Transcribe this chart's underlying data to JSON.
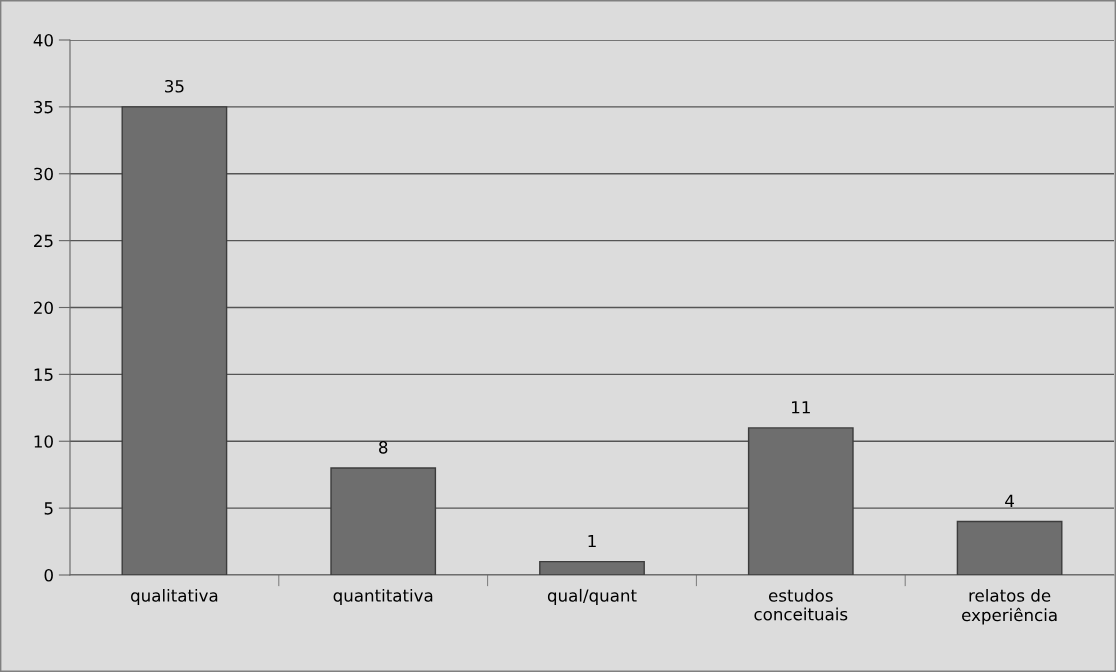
{
  "chart_data": {
    "type": "bar",
    "categories": [
      "qualitativa",
      "quantitativa",
      "qual/quant",
      "estudos\nconceituais",
      "relatos de\nexperiência"
    ],
    "values": [
      35,
      8,
      1,
      11,
      4
    ],
    "color": "#6e6e6e",
    "ylim": [
      0,
      40
    ],
    "yticks": [
      0,
      5,
      10,
      15,
      20,
      25,
      30,
      35,
      40
    ],
    "grid": "y",
    "data_labels": true
  }
}
